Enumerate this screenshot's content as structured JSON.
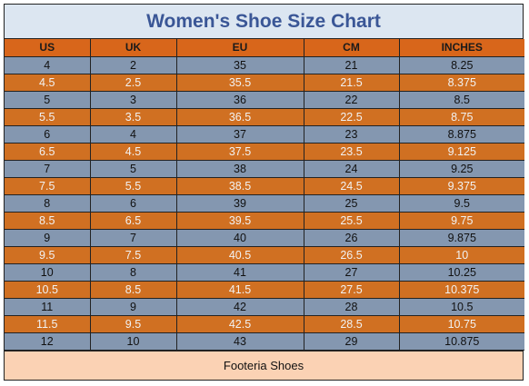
{
  "title": "Women's Shoe Size Chart",
  "columns": [
    "US",
    "UK",
    "EU",
    "CM",
    "INCHES"
  ],
  "rows": [
    [
      "4",
      "2",
      "35",
      "21",
      "8.25"
    ],
    [
      "4.5",
      "2.5",
      "35.5",
      "21.5",
      "8.375"
    ],
    [
      "5",
      "3",
      "36",
      "22",
      "8.5"
    ],
    [
      "5.5",
      "3.5",
      "36.5",
      "22.5",
      "8.75"
    ],
    [
      "6",
      "4",
      "37",
      "23",
      "8.875"
    ],
    [
      "6.5",
      "4.5",
      "37.5",
      "23.5",
      "9.125"
    ],
    [
      "7",
      "5",
      "38",
      "24",
      "9.25"
    ],
    [
      "7.5",
      "5.5",
      "38.5",
      "24.5",
      "9.375"
    ],
    [
      "8",
      "6",
      "39",
      "25",
      "9.5"
    ],
    [
      "8.5",
      "6.5",
      "39.5",
      "25.5",
      "9.75"
    ],
    [
      "9",
      "7",
      "40",
      "26",
      "9.875"
    ],
    [
      "9.5",
      "7.5",
      "40.5",
      "26.5",
      "10"
    ],
    [
      "10",
      "8",
      "41",
      "27",
      "10.25"
    ],
    [
      "10.5",
      "8.5",
      "41.5",
      "27.5",
      "10.375"
    ],
    [
      "11",
      "9",
      "42",
      "28",
      "10.5"
    ],
    [
      "11.5",
      "9.5",
      "42.5",
      "28.5",
      "10.75"
    ],
    [
      "12",
      "10",
      "43",
      "29",
      "10.875"
    ]
  ],
  "footer": "Footeria Shoes",
  "colors": {
    "title_text": "#3a5696",
    "title_background": "#dce6f1",
    "header_background": "#d8661b",
    "row_blue": "#8497b0",
    "row_orange": "#d07022",
    "footer_background": "#fbd2b4"
  }
}
